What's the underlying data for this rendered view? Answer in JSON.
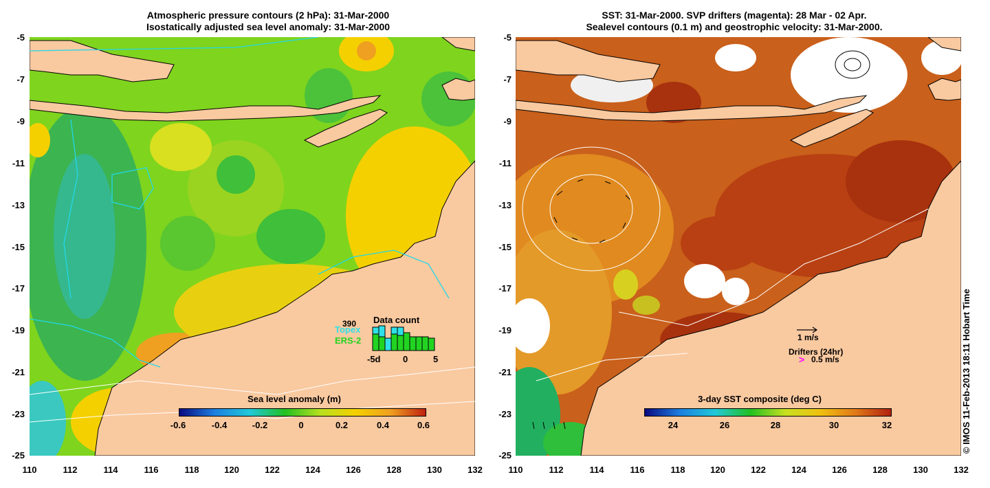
{
  "left_panel": {
    "title_line1": "Atmospheric pressure contours (2 hPa): 31-Mar-2000",
    "title_line2": "Isostatically adjusted sea level anomaly: 31-Mar-2000",
    "colorbar_title": "Sea level anomaly (m)",
    "colorbar_ticks": [
      "-0.6",
      "-0.4",
      "-0.2",
      "0",
      "0.2",
      "0.4",
      "0.6"
    ],
    "data_count": {
      "value": "390",
      "title": "Data count",
      "series": [
        "Topex",
        "ERS-2"
      ],
      "series_colors": [
        "#2fe0e8",
        "#22d422"
      ],
      "x_ticks": [
        "-5d",
        "0",
        "5"
      ]
    }
  },
  "right_panel": {
    "title_line1": "SST: 31-Mar-2000. SVP drifters (magenta): 28 Mar - 02 Apr.",
    "title_line2": "Sealevel contours (0.1 m) and geostrophic velocity: 31-Mar-2000.",
    "colorbar_title": "3-day SST composite (deg C)",
    "colorbar_ticks": [
      "24",
      "26",
      "28",
      "30",
      "32"
    ],
    "velocity_scale_label": "1 m/s",
    "drifters_label": "Drifters (24hr)",
    "drifters_scale_label": "0.5 m/s",
    "drifter_color": "#ff00ff"
  },
  "axes": {
    "y_ticks": [
      "-5",
      "-7",
      "-9",
      "-11",
      "-13",
      "-15",
      "-17",
      "-19",
      "-21",
      "-23",
      "-25"
    ],
    "x_ticks": [
      "110",
      "112",
      "114",
      "116",
      "118",
      "120",
      "122",
      "124",
      "126",
      "128",
      "130",
      "132"
    ]
  },
  "colors": {
    "land": "#f9c9a0",
    "contour_cyan": "#22d8e8",
    "sla_scale": [
      "#0a0a80",
      "#1d7fe0",
      "#22c8d8",
      "#22c022",
      "#b8e020",
      "#f5d000",
      "#f0a020",
      "#c02010"
    ],
    "sst_scale": [
      "#0a0a80",
      "#1d7fe0",
      "#22c8d8",
      "#22c022",
      "#c8e020",
      "#f0c010",
      "#e07818",
      "#b02010"
    ]
  },
  "credit": "© IMOS 11-Feb-2013 18:11 Hobart Time"
}
